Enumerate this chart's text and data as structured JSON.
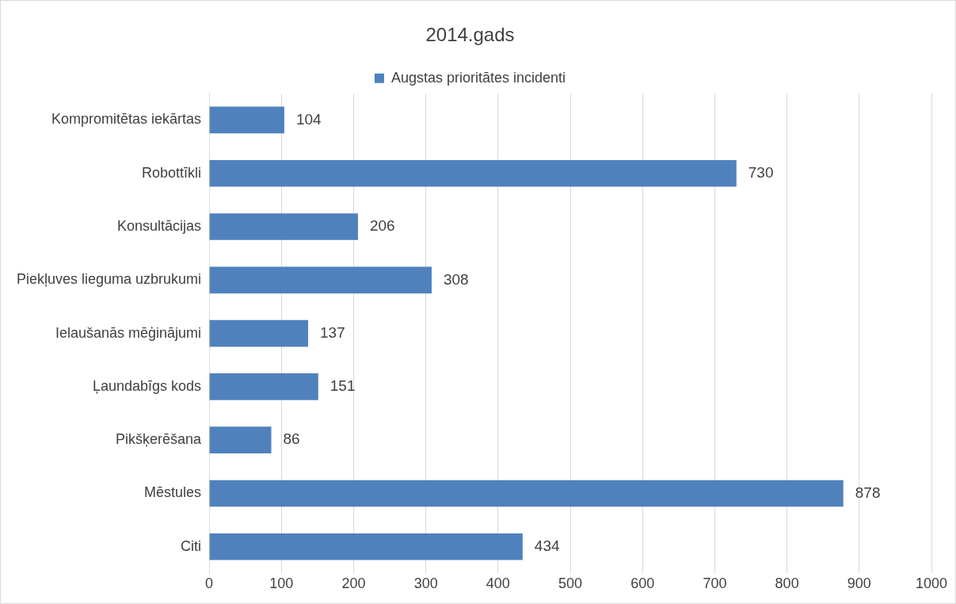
{
  "chart_data": {
    "type": "bar",
    "orientation": "horizontal",
    "title": "2014.gads",
    "categories": [
      "Kompromitētas iekārtas",
      "Robottīkli",
      "Konsultācijas",
      "Piekļuves lieguma uzbrukumi",
      "Ielaušanās mēģinājumi",
      "Ļaundabīgs kods",
      "Pikšķerēšana",
      "Mēstules",
      "Citi"
    ],
    "series": [
      {
        "name": "Augstas prioritātes incidenti",
        "color": "#4f81bd",
        "values": [
          104,
          730,
          206,
          308,
          137,
          151,
          86,
          878,
          434
        ]
      }
    ],
    "xlim": [
      0,
      1000
    ],
    "xticks": [
      0,
      100,
      200,
      300,
      400,
      500,
      600,
      700,
      800,
      900,
      1000
    ],
    "grid": "x",
    "legend": "top",
    "data_labels": true
  }
}
